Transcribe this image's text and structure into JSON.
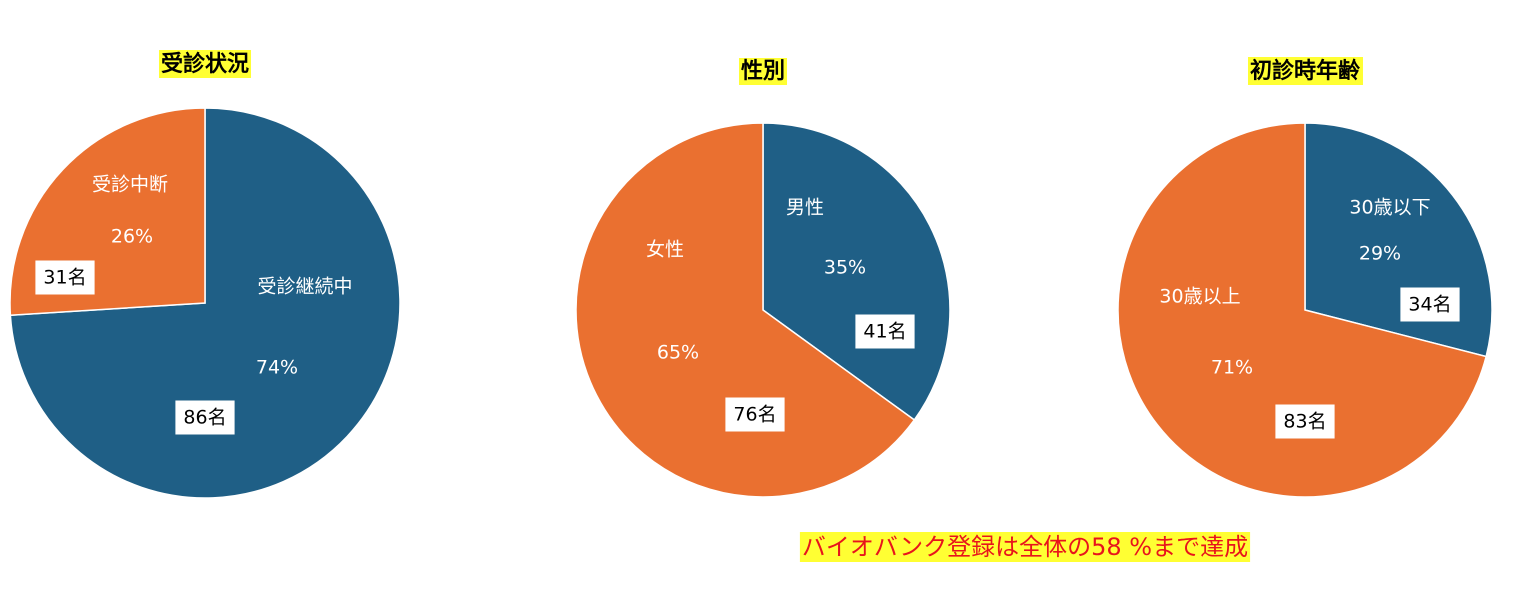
{
  "chart_data": [
    {
      "type": "pie",
      "title": "受診状況",
      "categories": [
        "受診継続中",
        "受診中断"
      ],
      "values": [
        74,
        26
      ],
      "value_labels": [
        "74%",
        "26%"
      ],
      "counts": [
        86,
        31
      ],
      "count_labels": [
        "86名",
        "31名"
      ],
      "colors": [
        "#1f5f86",
        "#ea7030"
      ]
    },
    {
      "type": "pie",
      "title": "性別",
      "categories": [
        "男性",
        "女性"
      ],
      "values": [
        35,
        65
      ],
      "value_labels": [
        "35%",
        "65%"
      ],
      "counts": [
        41,
        76
      ],
      "count_labels": [
        "41名",
        "76名"
      ],
      "colors": [
        "#1f5f86",
        "#ea7030"
      ]
    },
    {
      "type": "pie",
      "title": "初診時年齢",
      "categories": [
        "30歳以下",
        "30歳以上"
      ],
      "values": [
        29,
        71
      ],
      "value_labels": [
        "29%",
        "71%"
      ],
      "counts": [
        34,
        83
      ],
      "count_labels": [
        "34名",
        "83名"
      ],
      "colors": [
        "#1f5f86",
        "#ea7030"
      ]
    }
  ],
  "annotation": "バイオバンク登録は全体の58 %まで達成"
}
